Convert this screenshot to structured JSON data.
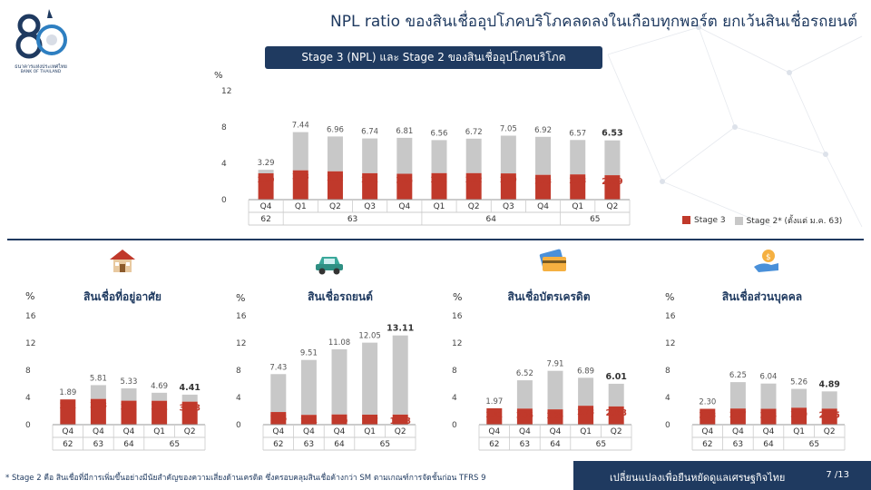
{
  "header": {
    "title": "NPL ratio ของสินเชื่ออุปโภคบริโภคลดลงในเกือบทุกพอร์ต ยกเว้นสินเชื่อรถยนต์",
    "subtitle": "Stage 3 (NPL) และ Stage 2 ของสินเชื่ออุปโภคบริโภค",
    "logo_text_th": "ธนาคารแห่งประเทศไทย",
    "logo_text_en": "BANK OF THAILAND",
    "logo_number": "80"
  },
  "colors": {
    "stage3": "#c0392b",
    "stage2": "#c8c8c8",
    "navy": "#1f3a60"
  },
  "legend": {
    "stage3": "Stage 3",
    "stage2": "Stage 2* (ตั้งแต่ ม.ค. 63)"
  },
  "icons": [
    "house-icon",
    "car-icon",
    "credit-card-icon",
    "money-hand-icon"
  ],
  "chart_data": [
    {
      "type": "bar",
      "title": "Stage 3 (NPL) และ Stage 2 ของสินเชื่ออุปโภคบริโภค",
      "ylabel": "%",
      "ylim": [
        0,
        12
      ],
      "yticks": [
        0,
        4,
        8,
        12
      ],
      "categories": [
        "Q4",
        "Q1",
        "Q2",
        "Q3",
        "Q4",
        "Q1",
        "Q2",
        "Q3",
        "Q4",
        "Q1",
        "Q2"
      ],
      "year_groups": [
        {
          "label": "62",
          "span": 1
        },
        {
          "label": "63",
          "span": 4
        },
        {
          "label": "64",
          "span": 4
        },
        {
          "label": "65",
          "span": 2
        }
      ],
      "stacked": true,
      "series": [
        {
          "name": "Stage 3",
          "values": [
            2.9,
            3.23,
            3.12,
            2.91,
            2.85,
            2.92,
            2.92,
            2.89,
            2.73,
            2.78,
            2.69
          ]
        },
        {
          "name": "Stage 2* (ตั้งแต่ ม.ค. 63)",
          "values": [
            0.39,
            4.21,
            3.84,
            3.83,
            3.96,
            3.64,
            3.8,
            4.16,
            4.19,
            3.79,
            3.84
          ]
        }
      ],
      "total_labels": [
        "3.29",
        "7.44",
        "6.96",
        "6.74",
        "6.81",
        "6.56",
        "6.72",
        "7.05",
        "6.92",
        "6.57",
        "6.53"
      ],
      "stage3_labels": [
        "2.90",
        "3.23",
        "3.12",
        "2.91",
        "2.85",
        "2.92",
        "2.92",
        "2.89",
        "2.73",
        "2.78",
        "2.69"
      ],
      "legend_position": "bottom-right"
    },
    {
      "type": "bar",
      "title": "สินเชื่อที่อยู่อาศัย",
      "ylabel": "%",
      "ylim": [
        0,
        16
      ],
      "yticks": [
        0,
        4,
        8,
        12,
        16
      ],
      "categories": [
        "Q4",
        "Q4",
        "Q4",
        "Q1",
        "Q2"
      ],
      "year_groups": [
        {
          "label": "62",
          "span": 1
        },
        {
          "label": "63",
          "span": 1
        },
        {
          "label": "64",
          "span": 1
        },
        {
          "label": "65",
          "span": 2
        }
      ],
      "stacked": true,
      "series": [
        {
          "name": "Stage 3",
          "values": [
            3.71,
            3.78,
            3.52,
            3.51,
            3.38
          ]
        },
        {
          "name": "Stage 2",
          "values": [
            -1.82,
            2.03,
            1.81,
            1.18,
            1.03
          ]
        }
      ],
      "total_labels": [
        "1.89",
        "5.81",
        "5.33",
        "4.69",
        "4.41"
      ],
      "stage3_labels": [
        "3.71",
        "3.78",
        "3.52",
        "3.51",
        "3.38"
      ]
    },
    {
      "type": "bar",
      "title": "สินเชื่อรถยนต์",
      "ylabel": "%",
      "ylim": [
        0,
        16
      ],
      "yticks": [
        0,
        4,
        8,
        12,
        16
      ],
      "categories": [
        "Q4",
        "Q4",
        "Q4",
        "Q1",
        "Q2"
      ],
      "year_groups": [
        {
          "label": "62",
          "span": 1
        },
        {
          "label": "63",
          "span": 1
        },
        {
          "label": "64",
          "span": 1
        },
        {
          "label": "65",
          "span": 2
        }
      ],
      "stacked": true,
      "series": [
        {
          "name": "Stage 3",
          "values": [
            1.86,
            1.44,
            1.5,
            1.47,
            1.48
          ]
        },
        {
          "name": "Stage 2",
          "values": [
            5.57,
            8.07,
            9.58,
            10.58,
            11.63
          ]
        }
      ],
      "total_labels": [
        "7.43",
        "9.51",
        "11.08",
        "12.05",
        "13.11"
      ],
      "stage3_labels": [
        "1.86",
        "1.44",
        "1.50",
        "1.47",
        "1.48"
      ]
    },
    {
      "type": "bar",
      "title": "สินเชื่อบัตรเครดิต",
      "ylabel": "%",
      "ylim": [
        0,
        16
      ],
      "yticks": [
        0,
        4,
        8,
        12,
        16
      ],
      "categories": [
        "Q4",
        "Q4",
        "Q4",
        "Q1",
        "Q2"
      ],
      "year_groups": [
        {
          "label": "62",
          "span": 1
        },
        {
          "label": "63",
          "span": 1
        },
        {
          "label": "64",
          "span": 1
        },
        {
          "label": "65",
          "span": 2
        }
      ],
      "stacked": true,
      "series": [
        {
          "name": "Stage 3",
          "values": [
            2.41,
            2.36,
            2.25,
            2.78,
            2.68
          ]
        },
        {
          "name": "Stage 2",
          "values": [
            -0.44,
            4.16,
            5.66,
            4.11,
            3.33
          ]
        }
      ],
      "total_labels": [
        "1.97",
        "6.52",
        "7.91",
        "6.89",
        "6.01"
      ],
      "stage3_labels": [
        "2.41",
        "2.36",
        "2.25",
        "2.78",
        "2.68"
      ]
    },
    {
      "type": "bar",
      "title": "สินเชื่อส่วนบุคคล",
      "ylabel": "%",
      "ylim": [
        0,
        16
      ],
      "yticks": [
        0,
        4,
        8,
        12,
        16
      ],
      "categories": [
        "Q4",
        "Q4",
        "Q4",
        "Q1",
        "Q2"
      ],
      "year_groups": [
        {
          "label": "62",
          "span": 1
        },
        {
          "label": "63",
          "span": 1
        },
        {
          "label": "64",
          "span": 1
        },
        {
          "label": "65",
          "span": 2
        }
      ],
      "stacked": true,
      "series": [
        {
          "name": "Stage 3",
          "values": [
            2.33,
            2.37,
            2.33,
            2.49,
            2.35
          ]
        },
        {
          "name": "Stage 2",
          "values": [
            -0.03,
            3.88,
            3.71,
            2.77,
            2.54
          ]
        }
      ],
      "total_labels": [
        "2.30",
        "6.25",
        "6.04",
        "5.26",
        "4.89"
      ],
      "stage3_labels": [
        "2.33",
        "2.37",
        "2.33",
        "2.49",
        "2.35"
      ]
    }
  ],
  "footnote": "* Stage 2 คือ สินเชื่อที่มีการเพิ่มขึ้นอย่างมีนัยสำคัญของความเสี่ยงด้านเครดิต ซึ่งครอบคลุมสินเชื่อค้างกว่า SM ตามเกณฑ์การจัดชั้นก่อน TFRS 9",
  "footer": {
    "slogan": "เปลี่ยนแปลงเพื่อยืนหยัดดูแลเศรษฐกิจไทย",
    "page": "7 /13"
  }
}
